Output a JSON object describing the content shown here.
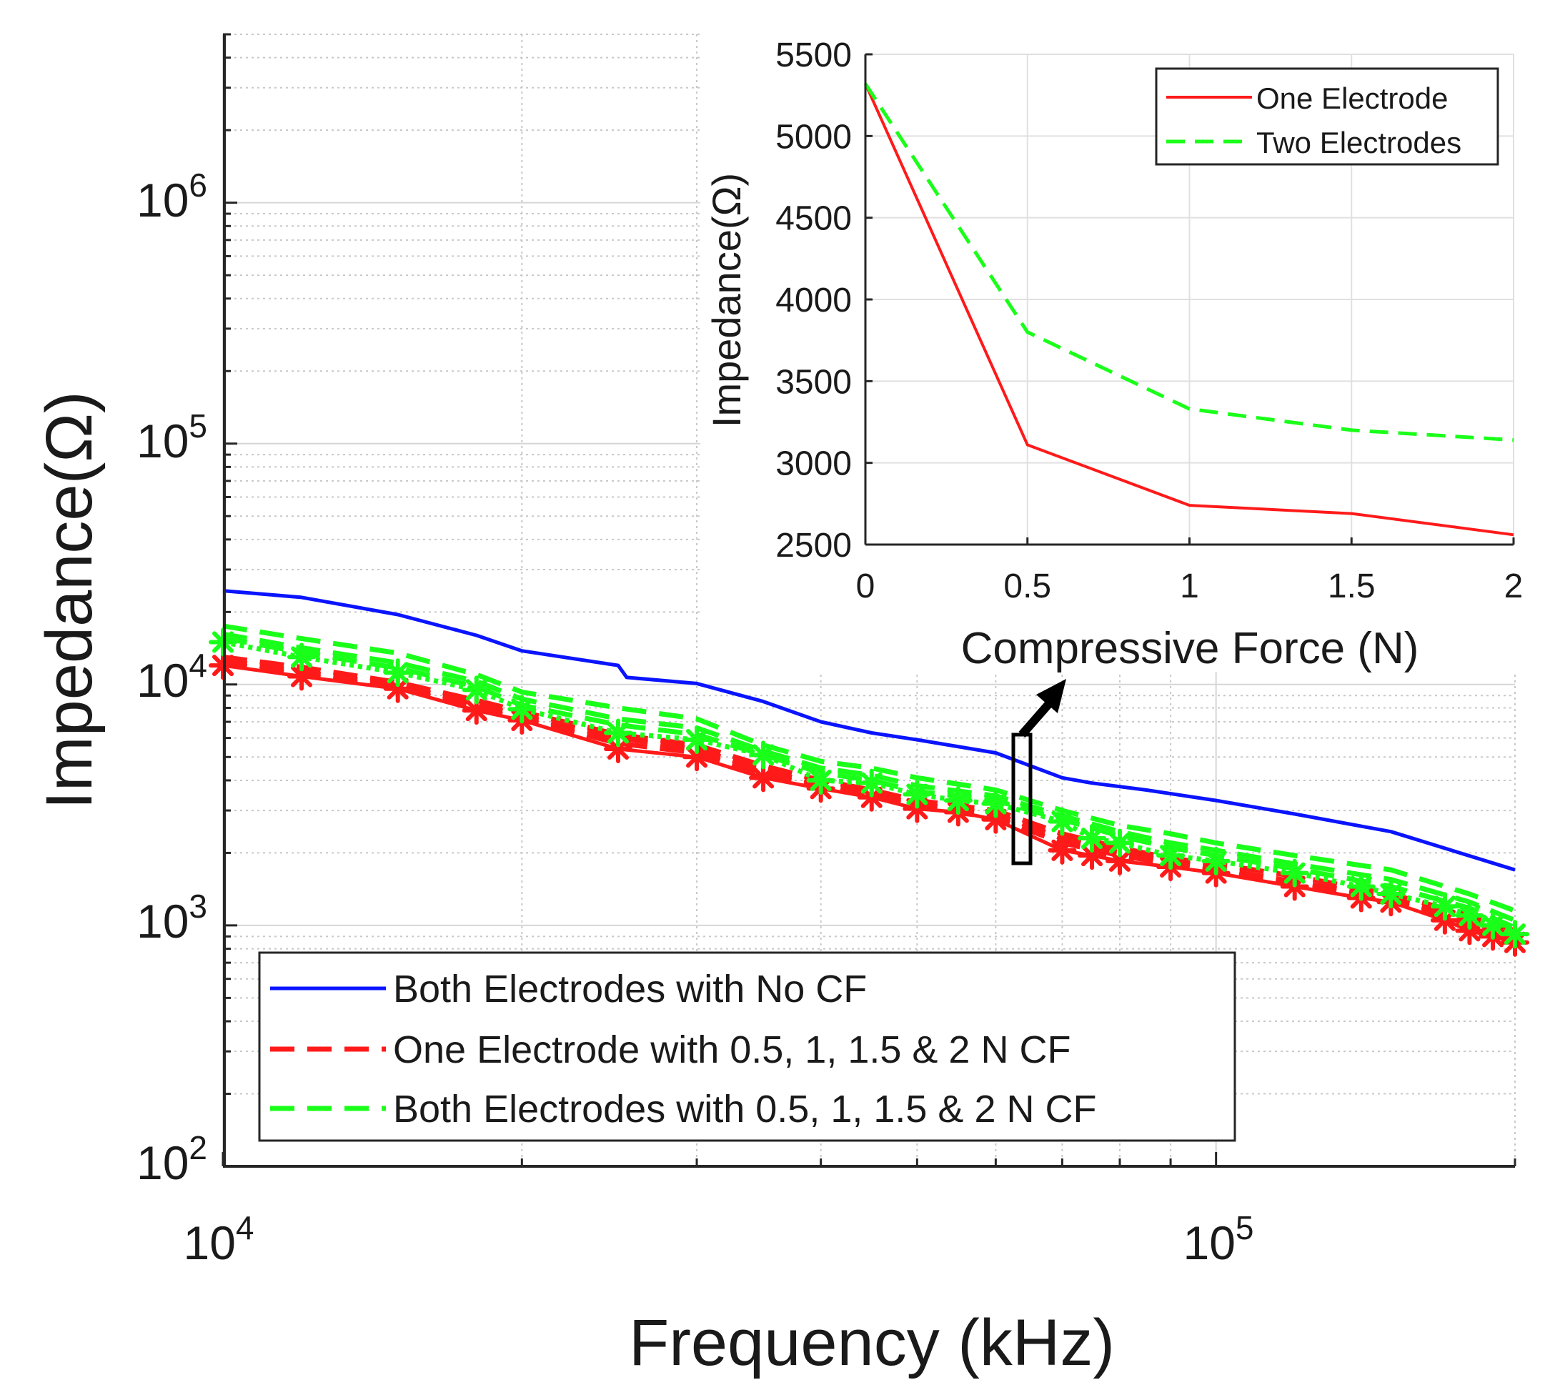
{
  "chart_data": [
    {
      "type": "line",
      "title": "",
      "xlabel": "Frequency (kHz)",
      "ylabel": "Impedance(Ω)",
      "xscale": "log",
      "yscale": "log",
      "xlim": [
        10000,
        200000
      ],
      "ylim": [
        100,
        5000000
      ],
      "grid": true,
      "minor_grid": true,
      "x_tick_labels": [
        {
          "value": 10000,
          "base": "10",
          "exp": "4"
        },
        {
          "value": 100000,
          "base": "10",
          "exp": "5"
        }
      ],
      "y_tick_labels": [
        {
          "value": 100,
          "base": "10",
          "exp": "2"
        },
        {
          "value": 1000,
          "base": "10",
          "exp": "3"
        },
        {
          "value": 10000,
          "base": "10",
          "exp": "4"
        },
        {
          "value": 100000,
          "base": "10",
          "exp": "5"
        },
        {
          "value": 1000000,
          "base": "10",
          "exp": "6"
        }
      ],
      "legend_position": "bottom-left",
      "legend": [
        {
          "label": "Both Electrodes with No CF",
          "color": "#0a14ff",
          "style": "solid"
        },
        {
          "label": "One Electrode with 0.5, 1, 1.5 & 2 N CF",
          "color": "#ff1a1a",
          "style": "dashed"
        },
        {
          "label": "Both Electrodes with 0.5, 1, 1.5 & 2 N CF",
          "color": "#1aff1a",
          "style": "dashed"
        }
      ],
      "series": [
        {
          "name": "Both Electrodes with No CF",
          "color": "#0a14ff",
          "style": "solid",
          "markers": false,
          "x": [
            10000,
            12000,
            15000,
            18000,
            20000,
            25000,
            25500,
            30000,
            35000,
            40000,
            45000,
            50000,
            60000,
            70000,
            75000,
            85000,
            100000,
            120000,
            150000,
            200000
          ],
          "y": [
            24500,
            23000,
            19500,
            16000,
            13800,
            12000,
            10700,
            10100,
            8500,
            7000,
            6300,
            5900,
            5200,
            4100,
            3900,
            3650,
            3300,
            2900,
            2450,
            1700
          ]
        },
        {
          "name": "One Electrode, 0.5 N CF (solid)",
          "color": "#ff1a1a",
          "style": "solid",
          "markers": true,
          "x": [
            10000,
            12000,
            15000,
            18000,
            20000,
            25000,
            30000,
            35000,
            40000,
            45000,
            50000,
            55000,
            60000,
            70000,
            75000,
            80000,
            90000,
            100000,
            120000,
            140000,
            150000,
            170000,
            180000,
            190000,
            200000
          ],
          "y": [
            12000,
            10800,
            9600,
            7800,
            7100,
            5400,
            5000,
            4100,
            3700,
            3400,
            3050,
            2950,
            2750,
            2050,
            1950,
            1850,
            1750,
            1650,
            1450,
            1300,
            1250,
            1050,
            950,
            900,
            850
          ]
        },
        {
          "name": "One Electrode, 1 N CF",
          "color": "#ff1a1a",
          "style": "dashed",
          "markers": false,
          "x": [
            10000,
            12000,
            15000,
            18000,
            20000,
            25000,
            30000,
            35000,
            40000,
            45000,
            50000,
            60000,
            70000,
            80000,
            90000,
            100000,
            120000,
            150000,
            180000,
            200000
          ],
          "y": [
            13000,
            11800,
            10200,
            8600,
            7700,
            6200,
            5600,
            4600,
            4000,
            3650,
            3300,
            3000,
            2400,
            2100,
            1900,
            1800,
            1600,
            1350,
            1100,
            950
          ]
        },
        {
          "name": "One Electrode, 1.5 N CF",
          "color": "#ff1a1a",
          "style": "dashed",
          "markers": false,
          "x": [
            10000,
            12000,
            15000,
            18000,
            20000,
            25000,
            30000,
            35000,
            40000,
            45000,
            50000,
            60000,
            70000,
            80000,
            90000,
            100000,
            120000,
            150000,
            180000,
            200000
          ],
          "y": [
            12600,
            11300,
            9900,
            8300,
            7400,
            6000,
            5400,
            4400,
            3850,
            3500,
            3200,
            2900,
            2300,
            2000,
            1850,
            1720,
            1520,
            1300,
            1050,
            900
          ]
        },
        {
          "name": "One Electrode, 2 N CF",
          "color": "#ff1a1a",
          "style": "dashed",
          "markers": false,
          "x": [
            10000,
            12000,
            15000,
            18000,
            20000,
            25000,
            30000,
            35000,
            40000,
            45000,
            50000,
            60000,
            70000,
            80000,
            90000,
            100000,
            120000,
            150000,
            180000,
            200000
          ],
          "y": [
            12300,
            11000,
            9700,
            8000,
            7200,
            5700,
            5200,
            4250,
            3750,
            3450,
            3100,
            2800,
            2200,
            1950,
            1800,
            1680,
            1480,
            1270,
            1000,
            870
          ]
        },
        {
          "name": "Both Electrodes, 0.5 N CF (dotted)",
          "color": "#1aff1a",
          "style": "dotted",
          "markers": true,
          "x": [
            10000,
            12000,
            15000,
            18000,
            20000,
            25000,
            30000,
            35000,
            40000,
            45000,
            50000,
            55000,
            60000,
            70000,
            75000,
            80000,
            90000,
            100000,
            120000,
            140000,
            150000,
            170000,
            180000,
            190000,
            200000
          ],
          "y": [
            15000,
            13000,
            11200,
            9500,
            7900,
            6300,
            5900,
            5100,
            4000,
            3900,
            3500,
            3300,
            3200,
            2700,
            2300,
            2200,
            1950,
            1850,
            1650,
            1450,
            1350,
            1200,
            1100,
            1000,
            920
          ]
        },
        {
          "name": "Both Electrodes, 1 N CF",
          "color": "#1aff1a",
          "style": "dashed",
          "markers": false,
          "x": [
            10000,
            12000,
            15000,
            18000,
            20000,
            25000,
            30000,
            35000,
            40000,
            45000,
            50000,
            60000,
            70000,
            80000,
            90000,
            100000,
            120000,
            150000,
            180000,
            200000
          ],
          "y": [
            17500,
            15500,
            13500,
            11000,
            9300,
            8000,
            7200,
            5600,
            4800,
            4500,
            4100,
            3650,
            3000,
            2600,
            2400,
            2200,
            1950,
            1700,
            1350,
            1150
          ]
        },
        {
          "name": "Both Electrodes, 1.5 N CF",
          "color": "#1aff1a",
          "style": "dashed",
          "markers": false,
          "x": [
            10000,
            12000,
            15000,
            18000,
            20000,
            25000,
            30000,
            35000,
            40000,
            45000,
            50000,
            60000,
            70000,
            80000,
            90000,
            100000,
            120000,
            150000,
            180000,
            200000
          ],
          "y": [
            16200,
            14200,
            12300,
            10300,
            8700,
            7200,
            6600,
            5300,
            4500,
            4200,
            3800,
            3450,
            2850,
            2450,
            2200,
            2050,
            1800,
            1550,
            1250,
            1050
          ]
        },
        {
          "name": "Both Electrodes, 2 N CF",
          "color": "#1aff1a",
          "style": "dashed",
          "markers": false,
          "x": [
            10000,
            12000,
            15000,
            18000,
            20000,
            25000,
            30000,
            35000,
            40000,
            45000,
            50000,
            60000,
            70000,
            80000,
            90000,
            100000,
            120000,
            150000,
            180000,
            200000
          ],
          "y": [
            15600,
            13600,
            11700,
            9800,
            8200,
            6800,
            6200,
            5100,
            4300,
            4000,
            3600,
            3300,
            2750,
            2350,
            2100,
            1950,
            1720,
            1450,
            1180,
            980
          ]
        }
      ],
      "annotation_arrow": {
        "from_x": 65000,
        "to_x": 80000,
        "label": "Compressive Force (N)"
      }
    },
    {
      "type": "line",
      "title": "",
      "xlabel": "Compressive Force (N)",
      "ylabel": "Impedance(Ω)",
      "xlim": [
        0,
        2
      ],
      "ylim": [
        2500,
        5500
      ],
      "grid": true,
      "x_tick_labels": [
        "0",
        "0.5",
        "1",
        "1.5",
        "2"
      ],
      "x_tick_values": [
        0,
        0.5,
        1,
        1.5,
        2
      ],
      "y_tick_labels": [
        "2500",
        "3000",
        "3500",
        "4000",
        "4500",
        "5000",
        "5500"
      ],
      "y_tick_values": [
        2500,
        3000,
        3500,
        4000,
        4500,
        5000,
        5500
      ],
      "legend_position": "top-right",
      "series": [
        {
          "name": "One Electrode",
          "color": "#ff1a1a",
          "style": "solid",
          "x": [
            0,
            0.5,
            1,
            1.5,
            2
          ],
          "y": [
            5320,
            3110,
            2740,
            2690,
            2560
          ]
        },
        {
          "name": "Two Electrodes",
          "color": "#1aff1a",
          "style": "dashed",
          "x": [
            0,
            0.5,
            1,
            1.5,
            2
          ],
          "y": [
            5320,
            3800,
            3330,
            3200,
            3140
          ]
        }
      ]
    }
  ]
}
